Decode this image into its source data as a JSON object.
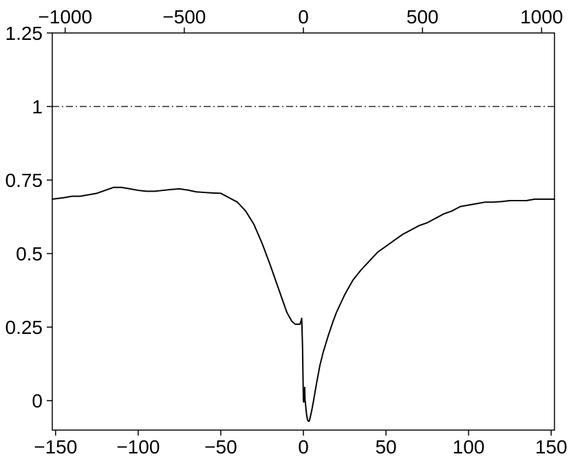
{
  "chart_data": {
    "type": "line",
    "title": "",
    "xlabel": "",
    "ylabel": "",
    "xlim": [
      -152,
      152
    ],
    "ylim": [
      -0.1,
      1.25
    ],
    "top_axis": {
      "ticks": [
        -1000,
        -500,
        0,
        500,
        1000
      ],
      "tick_labels": [
        "−1000",
        "−500",
        "0",
        "500",
        "1000"
      ]
    },
    "bottom_axis": {
      "ticks": [
        -150,
        -100,
        -50,
        0,
        50,
        100,
        150
      ],
      "tick_labels": [
        "−150",
        "−100",
        "−50",
        "0",
        "50",
        "100",
        "150"
      ]
    },
    "left_axis": {
      "ticks": [
        0,
        0.25,
        0.5,
        0.75,
        1,
        1.25
      ],
      "tick_labels": [
        "0",
        "0.25",
        "0.5",
        "0.75",
        "1",
        "1.25"
      ]
    },
    "reference_line": {
      "y": 1,
      "style": "dash-dot",
      "color": "#000000"
    },
    "grid": false,
    "series": [
      {
        "color": "#000000",
        "x": [
          -152,
          -145,
          -140,
          -135,
          -130,
          -125,
          -120,
          -115,
          -110,
          -105,
          -100,
          -95,
          -90,
          -85,
          -80,
          -75,
          -70,
          -65,
          -60,
          -55,
          -50,
          -45,
          -40,
          -35,
          -30,
          -25,
          -20,
          -15,
          -10,
          -7,
          -5,
          -3,
          -2,
          -1,
          -0.5,
          0,
          0.2,
          0.4,
          0.8,
          1,
          1.2,
          1.6,
          2,
          2.5,
          3,
          3.5,
          4,
          5,
          6,
          8,
          10,
          12,
          15,
          18,
          20,
          25,
          30,
          35,
          40,
          45,
          50,
          55,
          60,
          65,
          70,
          75,
          80,
          85,
          90,
          95,
          100,
          105,
          110,
          115,
          120,
          125,
          130,
          135,
          140,
          145,
          152
        ],
        "y": [
          0.685,
          0.69,
          0.695,
          0.695,
          0.7,
          0.705,
          0.715,
          0.725,
          0.725,
          0.72,
          0.715,
          0.712,
          0.712,
          0.715,
          0.718,
          0.72,
          0.716,
          0.71,
          0.708,
          0.706,
          0.705,
          0.69,
          0.675,
          0.645,
          0.6,
          0.535,
          0.46,
          0.38,
          0.3,
          0.27,
          0.26,
          0.26,
          0.26,
          0.28,
          0.18,
          0.0,
          -0.005,
          0.0,
          0.045,
          0.0,
          -0.005,
          -0.03,
          -0.05,
          -0.065,
          -0.07,
          -0.07,
          -0.06,
          -0.035,
          -0.005,
          0.06,
          0.12,
          0.165,
          0.22,
          0.27,
          0.3,
          0.36,
          0.41,
          0.445,
          0.475,
          0.505,
          0.525,
          0.545,
          0.565,
          0.58,
          0.595,
          0.605,
          0.62,
          0.635,
          0.645,
          0.66,
          0.665,
          0.67,
          0.675,
          0.675,
          0.677,
          0.68,
          0.68,
          0.68,
          0.685,
          0.685,
          0.685
        ]
      }
    ]
  }
}
